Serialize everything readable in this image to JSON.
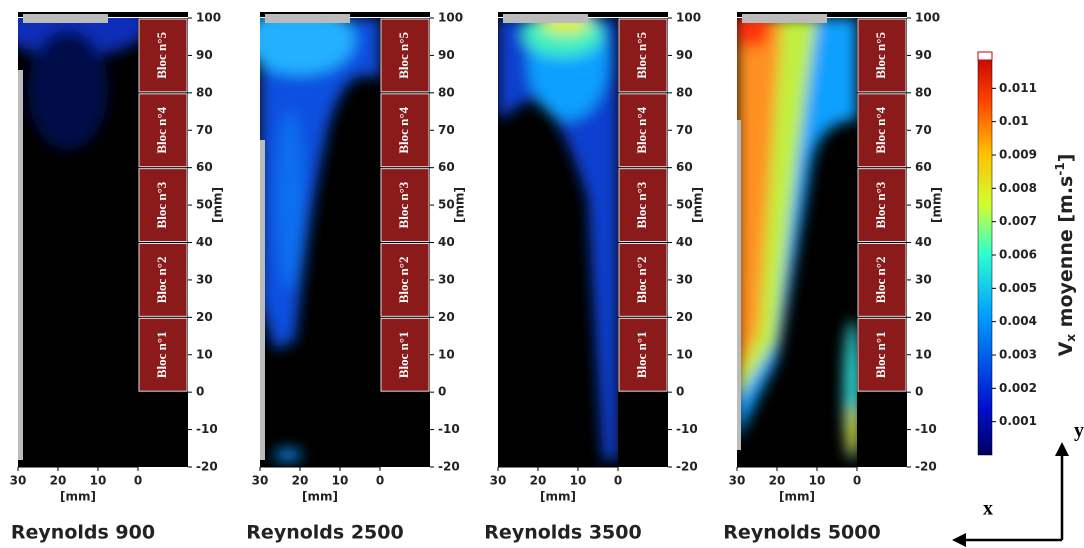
{
  "panels": [
    {
      "title": "Reynolds 900"
    },
    {
      "title": "Reynolds 2500"
    },
    {
      "title": "Reynolds 3500"
    },
    {
      "title": "Reynolds 5000"
    }
  ],
  "blocks": [
    "Bloc n°5",
    "Bloc n°4",
    "Bloc n°3",
    "Bloc n°2",
    "Bloc n°1"
  ],
  "yaxis": {
    "label": "[mm]",
    "lim": [
      -20,
      100
    ],
    "ticks": [
      100,
      90,
      80,
      70,
      60,
      50,
      40,
      30,
      20,
      10,
      0,
      -10,
      -20
    ]
  },
  "xaxis": {
    "label": "[mm]",
    "lim": [
      30,
      0
    ],
    "ticks": [
      30,
      20,
      10,
      0
    ]
  },
  "colorbar": {
    "label": {
      "main": "V",
      "sub": "x",
      "rest": " moyenne [m.s",
      "sup": "-1",
      "end": "]"
    },
    "lim": [
      0,
      0.012
    ],
    "ticks": [
      0.001,
      0.002,
      0.003,
      0.004,
      0.005,
      0.006,
      0.007,
      0.008,
      0.009,
      0.01,
      0.011
    ]
  },
  "axes": {
    "x": "x",
    "y": "y"
  }
}
